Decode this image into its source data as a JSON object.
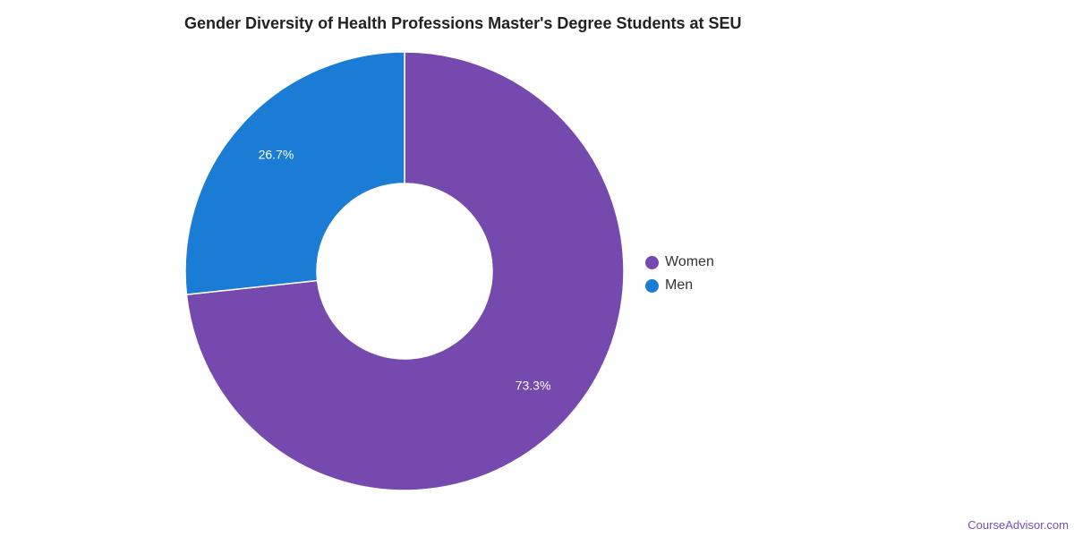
{
  "chart_data": {
    "type": "pie",
    "title": "Gender Diversity of Health Professions Master's Degree Students at SEU",
    "categories": [
      "Women",
      "Men"
    ],
    "values": [
      73.3,
      26.7
    ],
    "value_labels": [
      "73.3%",
      "26.7%"
    ],
    "colors": [
      "#7549ae",
      "#1a7cd4"
    ],
    "donut": true,
    "legend_position": "right"
  },
  "legend": {
    "items": [
      {
        "label": "Women",
        "color": "#7549ae"
      },
      {
        "label": "Men",
        "color": "#1a7cd4"
      }
    ]
  },
  "footer": {
    "credit": "CourseAdvisor.com"
  }
}
